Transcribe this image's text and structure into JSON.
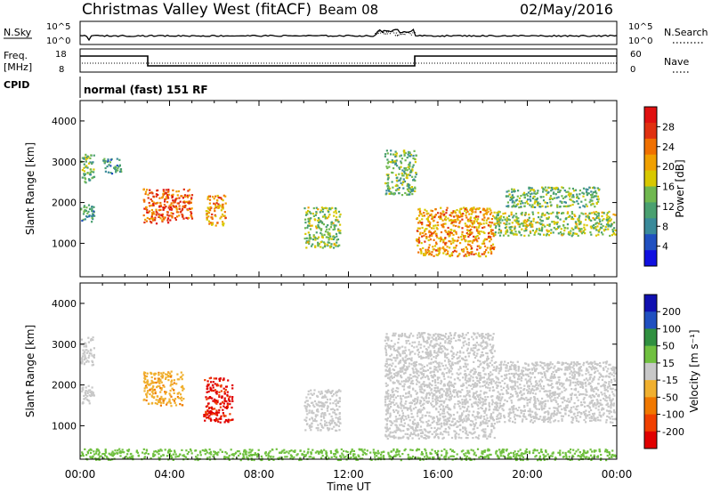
{
  "header": {
    "title": "Christmas Valley West (fitACF)",
    "beam": "Beam 08",
    "date": "02/May/2016"
  },
  "strips": {
    "nsky_label": "N.Sky",
    "nsky_ticks": [
      "10^5",
      "10^0"
    ],
    "nsearch_label": "N.Search",
    "nsearch_ticks": [
      "10^5",
      "10^0"
    ],
    "freq_label": "Freq.",
    "freq_unit": "[MHz]",
    "freq_ticks": [
      "18",
      "8"
    ],
    "nave_label": "Nave",
    "nave_ticks": [
      "60",
      "0"
    ],
    "cpid_label": "CPID",
    "cpid_text": "normal (fast) 151 RF"
  },
  "panels": {
    "power": {
      "ylabel": "Slant Range [km]",
      "cbar_label": "Power [dB]",
      "cbar_ticks": [
        "28",
        "24",
        "20",
        "16",
        "12",
        "8",
        "4"
      ]
    },
    "velocity": {
      "ylabel": "Slant Range [km]",
      "cbar_label": "Velocity [m s⁻¹]",
      "cbar_ticks": [
        "200",
        "100",
        "50",
        "15",
        "-15",
        "-50",
        "-100",
        "-200"
      ]
    }
  },
  "xaxis": {
    "label": "Time UT",
    "ticks": [
      "00:00",
      "04:00",
      "08:00",
      "12:00",
      "16:00",
      "20:00",
      "00:00"
    ]
  },
  "chart_data": [
    {
      "type": "heatmap",
      "title": "Christmas Valley West (fitACF)",
      "xlabel": "Time UT",
      "ylabel": "Slant Range [km]",
      "ylim": [
        180,
        4500
      ],
      "xlim_hours": [
        0,
        24
      ],
      "y_ticks": [
        1000,
        2000,
        3000,
        4000
      ],
      "colorbar": {
        "label": "Power [dB]",
        "range": [
          0,
          30
        ],
        "ticks": [
          4,
          8,
          12,
          16,
          20,
          24,
          28
        ],
        "colors": [
          "#1010e0",
          "#2050c0",
          "#3a8a9a",
          "#4aa070",
          "#70b850",
          "#d8c800",
          "#f0a000",
          "#f07000",
          "#e03010",
          "#e01010"
        ]
      },
      "echo_regions": [
        {
          "t_start": 0.0,
          "t_end": 0.6,
          "range_start": 1550,
          "range_end": 2000,
          "power_db": 10
        },
        {
          "t_start": 0.0,
          "t_end": 0.6,
          "range_start": 2500,
          "range_end": 3200,
          "power_db": 12
        },
        {
          "t_start": 1.0,
          "t_end": 1.8,
          "range_start": 2700,
          "range_end": 3100,
          "power_db": 10
        },
        {
          "t_start": 2.8,
          "t_end": 4.0,
          "range_start": 1500,
          "range_end": 2350,
          "power_db": 24
        },
        {
          "t_start": 4.0,
          "t_end": 5.0,
          "range_start": 1600,
          "range_end": 2350,
          "power_db": 24
        },
        {
          "t_start": 5.6,
          "t_end": 6.5,
          "range_start": 1450,
          "range_end": 2200,
          "power_db": 20
        },
        {
          "t_start": 10.0,
          "t_end": 11.6,
          "range_start": 900,
          "range_end": 1900,
          "power_db": 14
        },
        {
          "t_start": 13.6,
          "t_end": 15.0,
          "range_start": 2200,
          "range_end": 3300,
          "power_db": 12
        },
        {
          "t_start": 15.0,
          "t_end": 18.5,
          "range_start": 700,
          "range_end": 1900,
          "power_db": 20
        },
        {
          "t_start": 18.5,
          "t_end": 23.9,
          "range_start": 1200,
          "range_end": 1800,
          "power_db": 14
        },
        {
          "t_start": 19.0,
          "t_end": 23.2,
          "range_start": 1900,
          "range_end": 2400,
          "power_db": 12
        }
      ]
    },
    {
      "type": "heatmap",
      "xlabel": "Time UT",
      "ylabel": "Slant Range [km]",
      "ylim": [
        180,
        4500
      ],
      "xlim_hours": [
        0,
        24
      ],
      "y_ticks": [
        1000,
        2000,
        3000,
        4000
      ],
      "colorbar": {
        "label": "Velocity [m s⁻¹]",
        "levels": [
          -200,
          -100,
          -50,
          -15,
          15,
          50,
          100,
          200
        ],
        "colors": [
          "#e00000",
          "#f04000",
          "#f07800",
          "#f0b030",
          "#c8c8c8",
          "#70c040",
          "#309040",
          "#2050c0",
          "#1010b0"
        ]
      },
      "echo_regions": [
        {
          "t_start": 0.0,
          "t_end": 0.6,
          "range_start": 1550,
          "range_end": 2000,
          "velocity": 0
        },
        {
          "t_start": 0.0,
          "t_end": 0.6,
          "range_start": 2500,
          "range_end": 3200,
          "velocity": 0
        },
        {
          "t_start": 2.8,
          "t_end": 4.6,
          "range_start": 1500,
          "range_end": 2350,
          "velocity": -40
        },
        {
          "t_start": 5.5,
          "t_end": 6.8,
          "range_start": 1100,
          "range_end": 2200,
          "velocity": -220
        },
        {
          "t_start": 10.0,
          "t_end": 11.6,
          "range_start": 900,
          "range_end": 1900,
          "velocity": 0
        },
        {
          "t_start": 13.6,
          "t_end": 18.5,
          "range_start": 700,
          "range_end": 3300,
          "velocity": 0
        },
        {
          "t_start": 18.5,
          "t_end": 23.9,
          "range_start": 1100,
          "range_end": 2600,
          "velocity": 0
        },
        {
          "t_start": 0.0,
          "t_end": 24.0,
          "range_start": 180,
          "range_end": 450,
          "velocity": 30
        }
      ]
    }
  ]
}
